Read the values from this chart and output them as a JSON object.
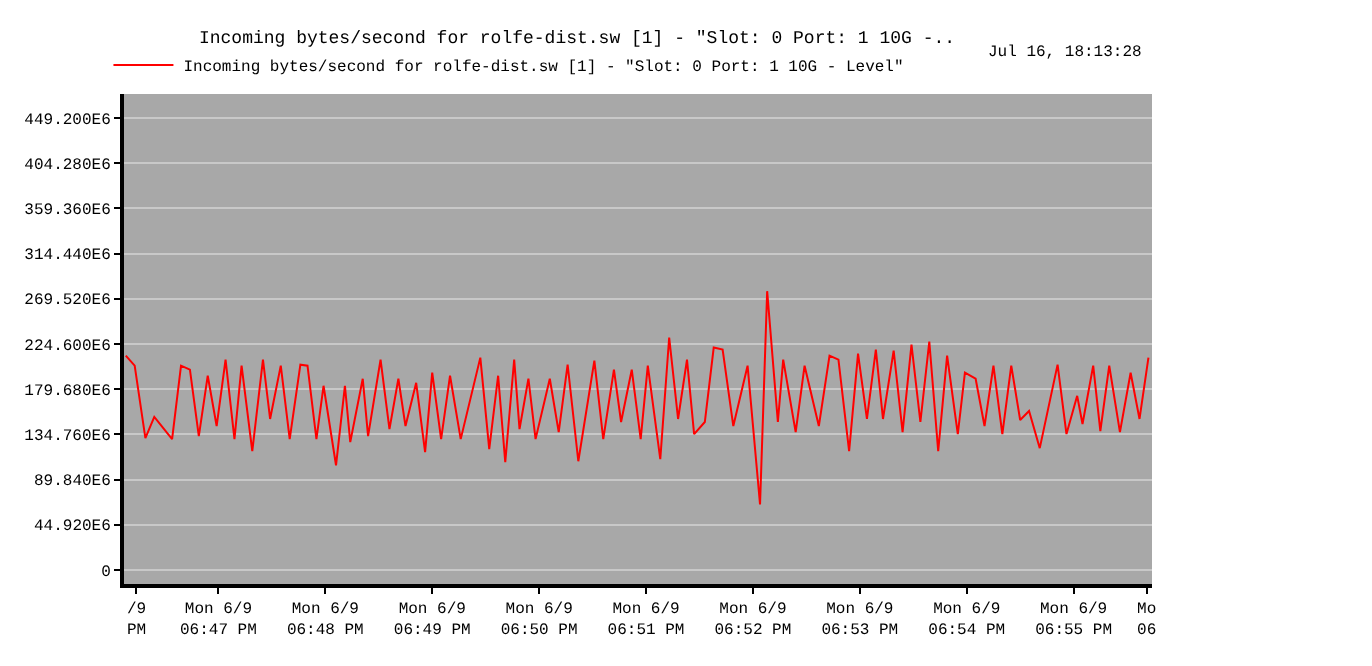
{
  "chart_data": {
    "type": "line",
    "title": "Incoming bytes/second for rolfe-dist.sw [1] - \"Slot: 0 Port: 1 10G -..",
    "subtitle": "Jul 16, 18:13:28",
    "x": [
      "--06-09T18:46:08",
      "--06-09T18:46:13",
      "--06-09T18:46:19",
      "--06-09T18:46:24",
      "--06-09T18:46:34",
      "--06-09T18:46:39",
      "--06-09T18:46:44",
      "--06-09T18:46:49",
      "--06-09T18:46:54",
      "--06-09T18:46:59",
      "--06-09T18:47:04",
      "--06-09T18:47:09",
      "--06-09T18:47:13",
      "--06-09T18:47:19",
      "--06-09T18:47:25",
      "--06-09T18:47:29",
      "--06-09T18:47:35",
      "--06-09T18:47:40",
      "--06-09T18:47:46",
      "--06-09T18:47:50",
      "--06-09T18:47:55",
      "--06-09T18:47:59",
      "--06-09T18:48:06",
      "--06-09T18:48:11",
      "--06-09T18:48:14",
      "--06-09T18:48:21",
      "--06-09T18:48:24",
      "--06-09T18:48:31",
      "--06-09T18:48:36",
      "--06-09T18:48:41",
      "--06-09T18:48:45",
      "--06-09T18:48:51",
      "--06-09T18:48:56",
      "--06-09T18:49:00",
      "--06-09T18:49:05",
      "--06-09T18:49:10",
      "--06-09T18:49:16",
      "--06-09T18:49:27",
      "--06-09T18:49:32",
      "--06-09T18:49:37",
      "--06-09T18:49:41",
      "--06-09T18:49:46",
      "--06-09T18:49:49",
      "--06-09T18:49:54",
      "--06-09T18:49:58",
      "--06-09T18:50:06",
      "--06-09T18:50:11",
      "--06-09T18:50:16",
      "--06-09T18:50:22",
      "--06-09T18:50:31",
      "--06-09T18:50:36",
      "--06-09T18:50:42",
      "--06-09T18:50:46",
      "--06-09T18:50:52",
      "--06-09T18:50:57",
      "--06-09T18:51:01",
      "--06-09T18:51:08",
      "--06-09T18:51:13",
      "--06-09T18:51:18",
      "--06-09T18:51:23",
      "--06-09T18:51:27",
      "--06-09T18:51:33",
      "--06-09T18:51:38",
      "--06-09T18:51:43",
      "--06-09T18:51:49",
      "--06-09T18:51:57",
      "--06-09T18:52:04",
      "--06-09T18:52:08",
      "--06-09T18:52:14",
      "--06-09T18:52:17",
      "--06-09T18:52:24",
      "--06-09T18:52:29",
      "--06-09T18:52:37",
      "--06-09T18:52:43",
      "--06-09T18:52:48",
      "--06-09T18:52:54",
      "--06-09T18:52:59",
      "--06-09T18:53:04",
      "--06-09T18:53:09",
      "--06-09T18:53:13",
      "--06-09T18:53:19",
      "--06-09T18:53:24",
      "--06-09T18:53:29",
      "--06-09T18:53:34",
      "--06-09T18:53:39",
      "--06-09T18:53:44",
      "--06-09T18:53:49",
      "--06-09T18:53:55",
      "--06-09T18:53:59",
      "--06-09T18:54:05",
      "--06-09T18:54:10",
      "--06-09T18:54:15",
      "--06-09T18:54:20",
      "--06-09T18:54:25",
      "--06-09T18:54:30",
      "--06-09T18:54:35",
      "--06-09T18:54:41",
      "--06-09T18:54:51",
      "--06-09T18:54:56",
      "--06-09T18:55:02",
      "--06-09T18:55:05",
      "--06-09T18:55:11",
      "--06-09T18:55:15",
      "--06-09T18:55:20",
      "--06-09T18:55:26",
      "--06-09T18:55:32",
      "--06-09T18:55:37",
      "--06-09T18:55:42"
    ],
    "series": [
      {
        "name": "Incoming bytes/second for rolfe-dist.sw [1] - \"Slot: 0 Port: 1 10G - Level\"",
        "color": "#ff0000",
        "values": [
          213000000.0,
          203000000.0,
          131000000.0,
          152000000.0,
          130000000.0,
          203000000.0,
          199000000.0,
          133000000.0,
          193000000.0,
          143000000.0,
          209000000.0,
          130000000.0,
          203000000.0,
          118000000.0,
          209000000.0,
          150000000.0,
          203000000.0,
          130000000.0,
          204000000.0,
          203000000.0,
          130000000.0,
          183000000.0,
          104000000.0,
          183000000.0,
          127000000.0,
          190000000.0,
          133000000.0,
          209000000.0,
          140000000.0,
          190000000.0,
          143000000.0,
          186000000.0,
          117000000.0,
          196000000.0,
          130000000.0,
          193000000.0,
          130000000.0,
          211000000.0,
          120000000.0,
          193000000.0,
          107000000.0,
          209000000.0,
          140000000.0,
          190000000.0,
          130000000.0,
          190000000.0,
          137000000.0,
          204000000.0,
          108000000.0,
          208000000.0,
          130000000.0,
          199000000.0,
          147000000.0,
          199000000.0,
          130000000.0,
          203000000.0,
          110000000.0,
          231000000.0,
          150000000.0,
          209000000.0,
          135000000.0,
          147000000.0,
          221000000.0,
          219000000.0,
          143000000.0,
          203000000.0,
          65000000.0,
          277000000.0,
          147000000.0,
          209000000.0,
          137000000.0,
          203000000.0,
          143000000.0,
          213000000.0,
          209000000.0,
          118000000.0,
          215000000.0,
          150000000.0,
          219000000.0,
          150000000.0,
          218000000.0,
          137000000.0,
          224000000.0,
          147000000.0,
          227000000.0,
          118000000.0,
          213000000.0,
          135000000.0,
          196000000.0,
          190000000.0,
          143000000.0,
          203000000.0,
          135000000.0,
          203000000.0,
          149000000.0,
          158000000.0,
          121000000.0,
          204000000.0,
          135000000.0,
          173000000.0,
          145000000.0,
          203000000.0,
          138000000.0,
          203000000.0,
          137000000.0,
          196000000.0,
          150000000.0,
          211000000.0
        ]
      }
    ],
    "xlim": [
      "--06-09T18:46:07",
      "--06-09T18:55:44"
    ],
    "xticks": [
      {
        "value": "--06-09T18:46:14",
        "label": "/9\nPM"
      },
      {
        "value": "--06-09T18:47",
        "label": "Mon 6/9\n06:47 PM"
      },
      {
        "value": "--06-09T18:48",
        "label": "Mon 6/9\n06:48 PM"
      },
      {
        "value": "--06-09T18:49",
        "label": "Mon 6/9\n06:49 PM"
      },
      {
        "value": "--06-09T18:50",
        "label": "Mon 6/9\n06:50 PM"
      },
      {
        "value": "--06-09T18:51",
        "label": "Mon 6/9\n06:51 PM"
      },
      {
        "value": "--06-09T18:52",
        "label": "Mon 6/9\n06:52 PM"
      },
      {
        "value": "--06-09T18:53",
        "label": "Mon 6/9\n06:53 PM"
      },
      {
        "value": "--06-09T18:54",
        "label": "Mon 6/9\n06:54 PM"
      },
      {
        "value": "--06-09T18:55",
        "label": "Mon 6/9\n06:55 PM"
      },
      {
        "value": "--06-09T18:55:41",
        "label": "Mo\n06"
      }
    ],
    "ylim": [
      -14000000.0,
      473000000.0
    ],
    "yticks": [
      0,
      {
        "value": 44920000.0,
        "label": "44.920E6"
      },
      {
        "value": 89840000.0,
        "label": "89.840E6"
      },
      {
        "value": 134760000.0,
        "label": "134.760E6"
      },
      {
        "value": 179680000.0,
        "label": "179.680E6"
      },
      {
        "value": 224600000.0,
        "label": "224.600E6"
      },
      {
        "value": 269520000.0,
        "label": "269.520E6"
      },
      {
        "value": 314440000.0,
        "label": "314.440E6"
      },
      {
        "value": 359360000.0,
        "label": "359.360E6"
      },
      {
        "value": 404280000.0,
        "label": "404.280E6"
      },
      {
        "value": 449200000.0,
        "label": "449.200E6"
      }
    ],
    "grid": "y",
    "legend": "top left"
  }
}
